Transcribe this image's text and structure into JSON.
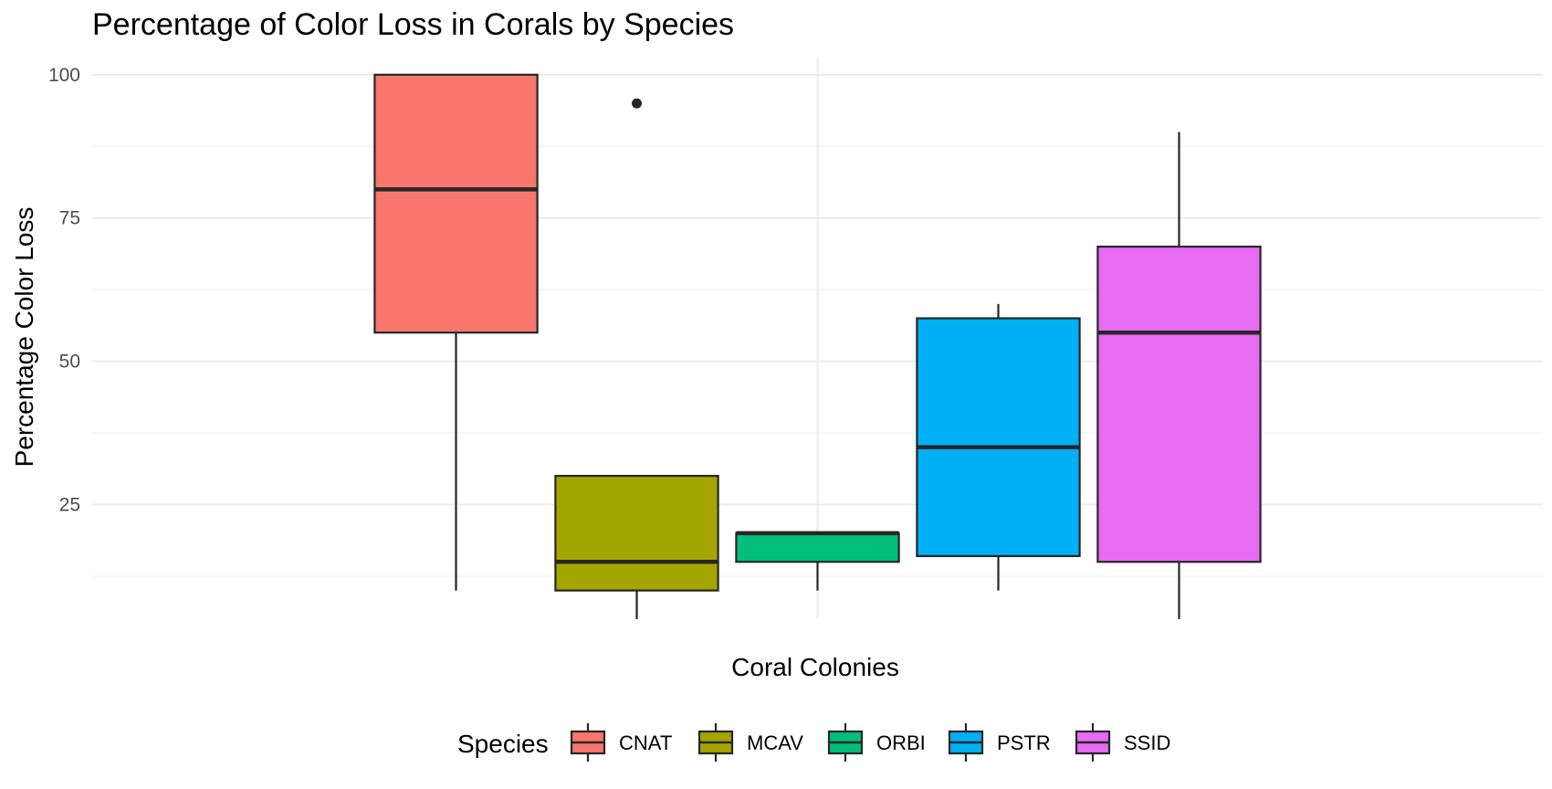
{
  "chart_data": {
    "type": "boxplot",
    "title": "Percentage of Color Loss in Corals by Species",
    "xlabel": "Coral Colonies",
    "ylabel": "Percentage Color Loss",
    "ylim": [
      5,
      103
    ],
    "yticks": [
      25,
      50,
      75,
      100
    ],
    "ytick_labels": [
      "25",
      "50",
      "75",
      "100"
    ],
    "grid": true,
    "legend": {
      "title": "Species",
      "position": "bottom"
    },
    "series": [
      {
        "name": "CNAT",
        "color": "#F8766D",
        "whisker_low": 10,
        "q1": 55,
        "median": 80,
        "q3": 100,
        "whisker_high": 100,
        "outliers": []
      },
      {
        "name": "MCAV",
        "color": "#A3A500",
        "whisker_low": 5,
        "q1": 10,
        "median": 15,
        "q3": 30,
        "whisker_high": 30,
        "outliers": [
          95
        ]
      },
      {
        "name": "ORBI",
        "color": "#00BF7D",
        "whisker_low": 10,
        "q1": 15,
        "median": 20,
        "q3": 20,
        "whisker_high": 20,
        "outliers": []
      },
      {
        "name": "PSTR",
        "color": "#00B0F6",
        "whisker_low": 10,
        "q1": 16,
        "median": 35,
        "q3": 57.5,
        "whisker_high": 60,
        "outliers": []
      },
      {
        "name": "SSID",
        "color": "#E76BF3",
        "whisker_low": 5,
        "q1": 15,
        "median": 55,
        "q3": 70,
        "whisker_high": 90,
        "outliers": []
      }
    ]
  }
}
